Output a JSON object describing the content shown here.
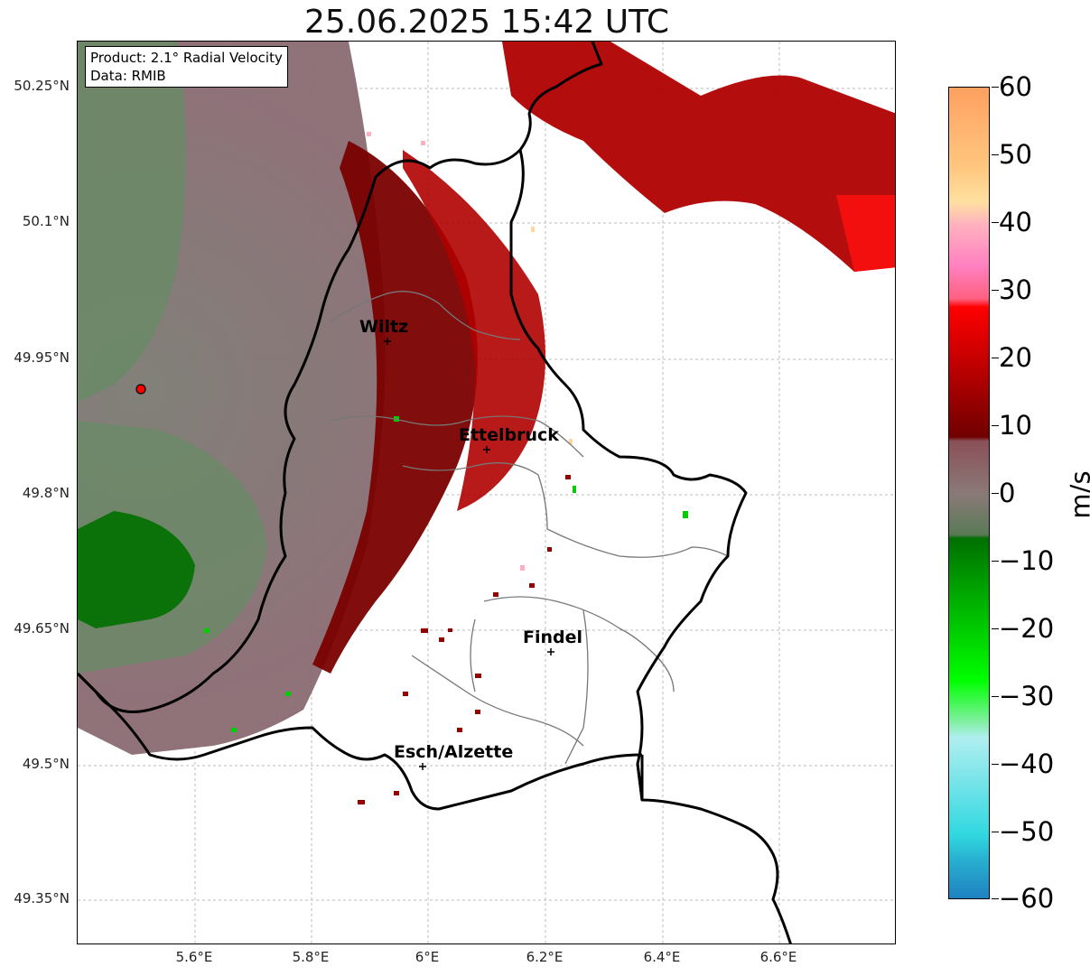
{
  "title": "25.06.2025 15:42 UTC",
  "info": {
    "product": "Product: 2.1° Radial Velocity",
    "data": "Data: RMIB"
  },
  "axes": {
    "y_ticks": [
      "50.25°N",
      "50.1°N",
      "49.95°N",
      "49.8°N",
      "49.65°N",
      "49.5°N",
      "49.35°N"
    ],
    "x_ticks": [
      "5.6°E",
      "5.8°E",
      "6°E",
      "6.2°E",
      "6.4°E",
      "6.6°E"
    ]
  },
  "cities": [
    {
      "name": "Wiltz"
    },
    {
      "name": "Ettelbruck"
    },
    {
      "name": "Findel"
    },
    {
      "name": "Esch/Alzette"
    }
  ],
  "colorbar": {
    "unit": "m/s",
    "ticks": [
      "60",
      "50",
      "40",
      "30",
      "20",
      "10",
      "0",
      "−10",
      "−20",
      "−30",
      "−40",
      "−50",
      "−60"
    ],
    "range": [
      -60,
      60
    ],
    "colors": {
      "neg_far": "#1f7fc0",
      "neg_cyan": "#30d8e0",
      "neg_lightcyan": "#b0eef0",
      "neg_lightgreen": "#80f0a0",
      "neg_green": "#00e000",
      "neg_darkgreen": "#007000",
      "zero_grey_green": "#708a6a",
      "zero_grey_red": "#8a6a70",
      "pos_darkred": "#700000",
      "pos_red": "#e00000",
      "pos_pink": "#ff6080",
      "pos_lightpink": "#ffb0c0",
      "pos_orange": "#ffa060"
    }
  },
  "radar_site": {
    "color": "#ff0000"
  }
}
